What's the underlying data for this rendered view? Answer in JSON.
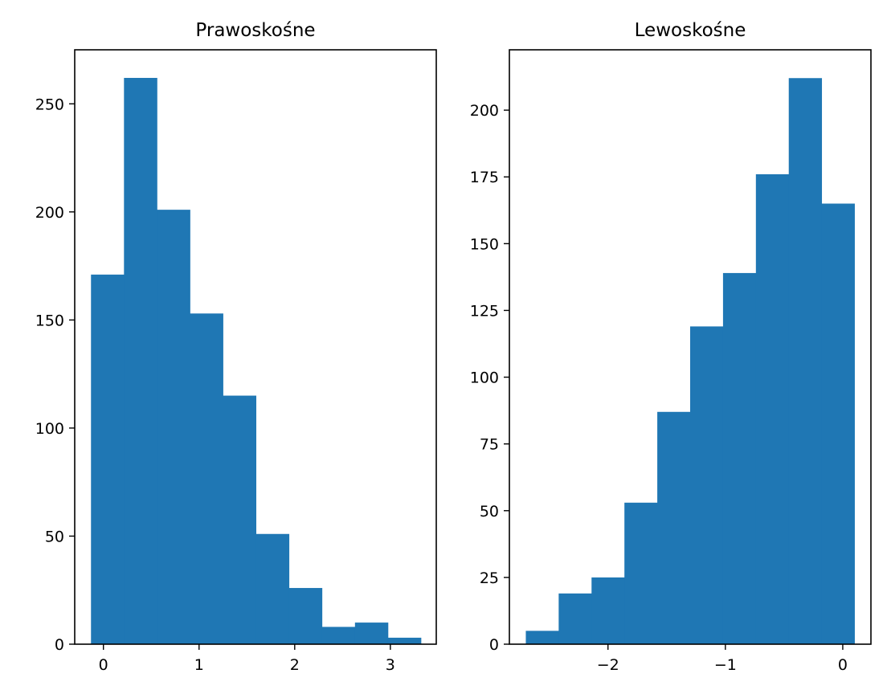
{
  "chart_data": [
    {
      "type": "bar",
      "title": "Prawoskośne",
      "xlabel": "",
      "ylabel": "",
      "bin_edges": [
        -0.13,
        0.215,
        0.56,
        0.905,
        1.25,
        1.595,
        1.94,
        2.285,
        2.63,
        2.975,
        3.32
      ],
      "values": [
        171,
        262,
        201,
        153,
        115,
        51,
        26,
        8,
        10,
        3
      ],
      "xlim": [
        -0.3,
        3.48
      ],
      "ylim": [
        0,
        275
      ],
      "xticks": [
        0,
        1,
        2,
        3
      ],
      "xtick_labels": [
        "0",
        "1",
        "2",
        "3"
      ],
      "yticks": [
        0,
        50,
        100,
        150,
        200,
        250
      ],
      "ytick_labels": [
        "0",
        "50",
        "100",
        "150",
        "200",
        "250"
      ],
      "color": "#1f77b4",
      "grid": false
    },
    {
      "type": "bar",
      "title": "Lewoskośne",
      "xlabel": "",
      "ylabel": "",
      "bin_edges": [
        -2.7,
        -2.42,
        -2.14,
        -1.86,
        -1.58,
        -1.3,
        -1.02,
        -0.74,
        -0.46,
        -0.18,
        0.1
      ],
      "values": [
        5,
        19,
        25,
        53,
        87,
        119,
        139,
        176,
        212,
        165
      ],
      "xlim": [
        -2.84,
        0.24
      ],
      "ylim": [
        0,
        222.6
      ],
      "xticks": [
        -2,
        -1,
        0
      ],
      "xtick_labels": [
        "−2",
        "−1",
        "0"
      ],
      "yticks": [
        0,
        25,
        50,
        75,
        100,
        125,
        150,
        175,
        200
      ],
      "ytick_labels": [
        "0",
        "25",
        "50",
        "75",
        "100",
        "125",
        "150",
        "175",
        "200"
      ],
      "color": "#1f77b4",
      "grid": false
    }
  ]
}
